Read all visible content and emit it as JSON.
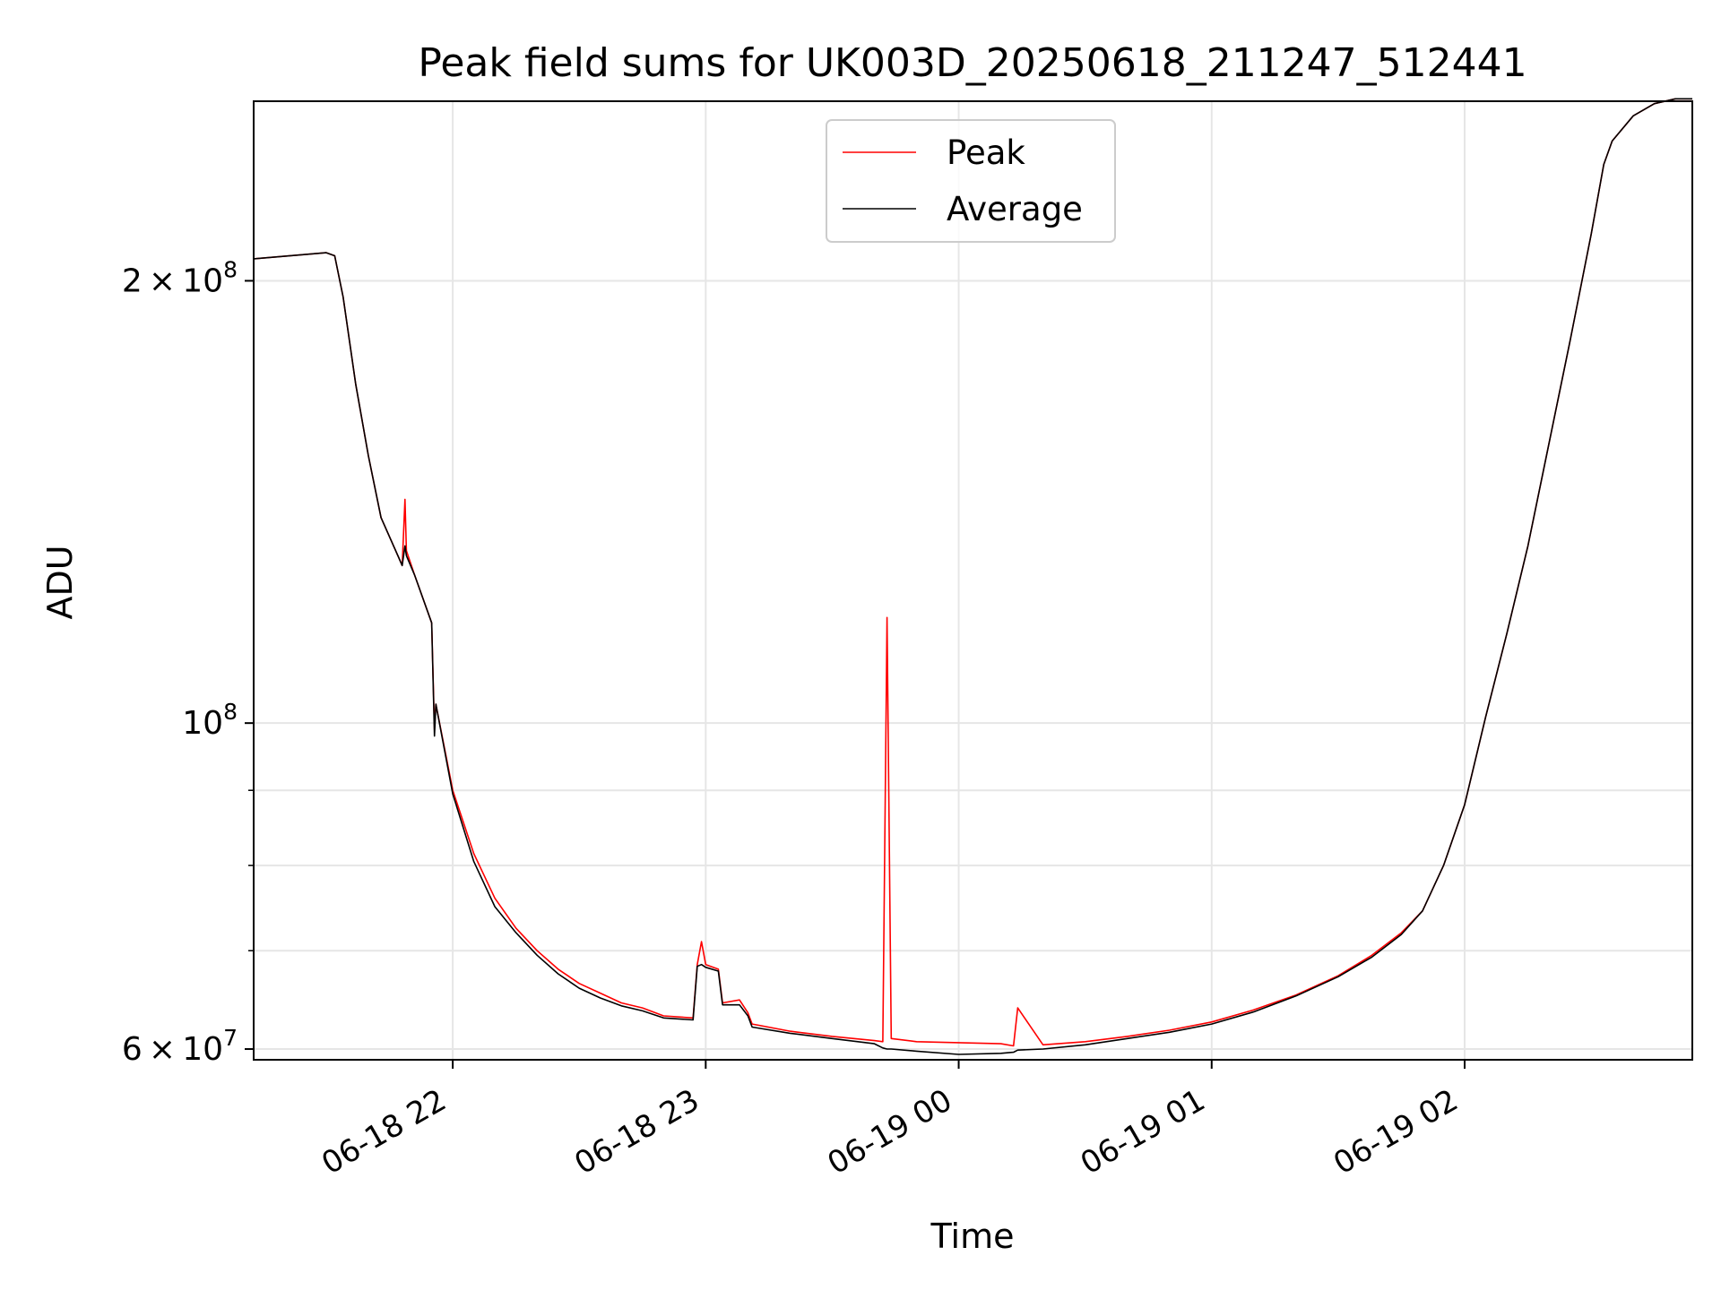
{
  "chart_data": {
    "type": "line",
    "title": "Peak field sums for UK003D_20250618_211247_512441",
    "xlabel": "Time",
    "ylabel": "ADU",
    "x_range": [
      "2025-06-18 21:12:47",
      "2025-06-19 02:54:00"
    ],
    "y_scale": "log",
    "ylim": [
      59000000,
      265000000
    ],
    "x_ticks": [
      {
        "value": "2025-06-18 22:00",
        "label": "06-18 22"
      },
      {
        "value": "2025-06-18 23:00",
        "label": "06-18 23"
      },
      {
        "value": "2025-06-19 00:00",
        "label": "06-19 00"
      },
      {
        "value": "2025-06-19 01:00",
        "label": "06-19 01"
      },
      {
        "value": "2025-06-19 02:00",
        "label": "06-19 02"
      }
    ],
    "y_ticks": [
      {
        "value": 60000000,
        "base": "6",
        "exp": "7"
      },
      {
        "value": 100000000,
        "base": "",
        "exp": "8"
      },
      {
        "value": 200000000,
        "base": "2",
        "exp": "8"
      }
    ],
    "y_minor_ticks": [
      70000000,
      80000000,
      90000000
    ],
    "grid": true,
    "legend_position": "upper center",
    "colors": {
      "peak": "#ff0000",
      "average": "#000000",
      "grid": "#e6e6e6"
    },
    "series": [
      {
        "name": "Peak",
        "color": "#ff0000",
        "x": [
          "2025-06-18 21:12:47",
          "2025-06-18 21:30",
          "2025-06-18 21:32",
          "2025-06-18 21:34",
          "2025-06-18 21:37",
          "2025-06-18 21:40",
          "2025-06-18 21:43",
          "2025-06-18 21:47",
          "2025-06-18 21:48",
          "2025-06-18 21:48:40",
          "2025-06-18 21:49",
          "2025-06-18 21:51",
          "2025-06-18 21:55",
          "2025-06-18 21:55:40",
          "2025-06-18 21:56",
          "2025-06-18 22:00",
          "2025-06-18 22:05",
          "2025-06-18 22:10",
          "2025-06-18 22:15",
          "2025-06-18 22:20",
          "2025-06-18 22:25",
          "2025-06-18 22:30",
          "2025-06-18 22:35",
          "2025-06-18 22:40",
          "2025-06-18 22:45",
          "2025-06-18 22:50",
          "2025-06-18 22:57",
          "2025-06-18 22:58",
          "2025-06-18 22:59",
          "2025-06-18 23:00",
          "2025-06-18 23:03",
          "2025-06-18 23:04",
          "2025-06-18 23:08",
          "2025-06-18 23:10",
          "2025-06-18 23:11",
          "2025-06-18 23:20",
          "2025-06-18 23:30",
          "2025-06-18 23:40",
          "2025-06-18 23:42",
          "2025-06-18 23:43",
          "2025-06-18 23:44",
          "2025-06-18 23:50",
          "2025-06-19 00:00",
          "2025-06-19 00:10",
          "2025-06-19 00:13",
          "2025-06-19 00:14",
          "2025-06-19 00:20",
          "2025-06-19 00:30",
          "2025-06-19 00:40",
          "2025-06-19 00:50",
          "2025-06-19 01:00",
          "2025-06-19 01:10",
          "2025-06-19 01:20",
          "2025-06-19 01:30",
          "2025-06-19 01:38",
          "2025-06-19 01:45",
          "2025-06-19 01:50",
          "2025-06-19 01:55",
          "2025-06-19 02:00",
          "2025-06-19 02:05",
          "2025-06-19 02:10",
          "2025-06-19 02:15",
          "2025-06-19 02:20",
          "2025-06-19 02:25",
          "2025-06-19 02:30",
          "2025-06-19 02:33",
          "2025-06-19 02:35",
          "2025-06-19 02:40",
          "2025-06-19 02:45",
          "2025-06-19 02:50",
          "2025-06-19 02:54"
        ],
        "values": [
          207000000,
          209000000,
          208000000,
          195000000,
          170000000,
          152000000,
          138000000,
          130000000,
          128000000,
          142000000,
          131000000,
          126000000,
          117000000,
          99000000,
          103000000,
          90000000,
          81500000,
          76000000,
          72500000,
          70000000,
          68000000,
          66500000,
          65500000,
          64500000,
          64000000,
          63200000,
          63000000,
          68500000,
          71000000,
          68500000,
          68000000,
          64500000,
          64800000,
          63500000,
          62400000,
          61700000,
          61200000,
          60800000,
          60700000,
          118000000,
          61000000,
          60700000,
          60600000,
          60500000,
          60300000,
          64000000,
          60400000,
          60700000,
          61200000,
          61800000,
          62600000,
          63800000,
          65300000,
          67300000,
          69500000,
          72000000,
          74500000,
          80000000,
          88000000,
          101000000,
          115000000,
          132000000,
          155000000,
          182000000,
          215000000,
          240000000,
          249000000,
          259000000,
          264000000,
          266000000,
          266000000
        ]
      },
      {
        "name": "Average",
        "color": "#000000",
        "x": [
          "2025-06-18 21:12:47",
          "2025-06-18 21:30",
          "2025-06-18 21:32",
          "2025-06-18 21:34",
          "2025-06-18 21:37",
          "2025-06-18 21:40",
          "2025-06-18 21:43",
          "2025-06-18 21:47",
          "2025-06-18 21:48",
          "2025-06-18 21:48:40",
          "2025-06-18 21:49",
          "2025-06-18 21:51",
          "2025-06-18 21:55",
          "2025-06-18 21:55:40",
          "2025-06-18 21:56",
          "2025-06-18 22:00",
          "2025-06-18 22:05",
          "2025-06-18 22:10",
          "2025-06-18 22:15",
          "2025-06-18 22:20",
          "2025-06-18 22:25",
          "2025-06-18 22:30",
          "2025-06-18 22:35",
          "2025-06-18 22:40",
          "2025-06-18 22:45",
          "2025-06-18 22:50",
          "2025-06-18 22:57",
          "2025-06-18 22:58",
          "2025-06-18 22:59",
          "2025-06-18 23:00",
          "2025-06-18 23:03",
          "2025-06-18 23:04",
          "2025-06-18 23:08",
          "2025-06-18 23:10",
          "2025-06-18 23:11",
          "2025-06-18 23:20",
          "2025-06-18 23:30",
          "2025-06-18 23:40",
          "2025-06-18 23:42",
          "2025-06-18 23:43",
          "2025-06-18 23:44",
          "2025-06-18 23:50",
          "2025-06-19 00:00",
          "2025-06-19 00:10",
          "2025-06-19 00:13",
          "2025-06-19 00:14",
          "2025-06-19 00:20",
          "2025-06-19 00:30",
          "2025-06-19 00:40",
          "2025-06-19 00:50",
          "2025-06-19 01:00",
          "2025-06-19 01:10",
          "2025-06-19 01:20",
          "2025-06-19 01:30",
          "2025-06-19 01:38",
          "2025-06-19 01:45",
          "2025-06-19 01:50",
          "2025-06-19 01:55",
          "2025-06-19 02:00",
          "2025-06-19 02:05",
          "2025-06-19 02:10",
          "2025-06-19 02:15",
          "2025-06-19 02:20",
          "2025-06-19 02:25",
          "2025-06-19 02:30",
          "2025-06-19 02:33",
          "2025-06-19 02:35",
          "2025-06-19 02:40",
          "2025-06-19 02:45",
          "2025-06-19 02:50",
          "2025-06-19 02:54"
        ],
        "values": [
          207000000,
          209000000,
          208000000,
          195000000,
          170000000,
          152000000,
          138000000,
          130000000,
          128000000,
          132000000,
          130000000,
          126000000,
          117000000,
          98000000,
          103000000,
          89500000,
          80500000,
          75000000,
          72000000,
          69500000,
          67500000,
          66000000,
          65000000,
          64200000,
          63700000,
          63000000,
          62800000,
          68300000,
          68500000,
          68200000,
          67800000,
          64300000,
          64300000,
          63200000,
          62100000,
          61500000,
          61000000,
          60500000,
          60100000,
          60000000,
          60000000,
          59800000,
          59500000,
          59600000,
          59700000,
          59900000,
          60000000,
          60400000,
          61000000,
          61600000,
          62400000,
          63600000,
          65200000,
          67200000,
          69300000,
          71800000,
          74500000,
          80000000,
          88000000,
          101000000,
          115000000,
          132000000,
          155000000,
          182000000,
          215000000,
          240000000,
          249000000,
          259000000,
          264000000,
          266000000,
          266000000
        ]
      }
    ]
  }
}
